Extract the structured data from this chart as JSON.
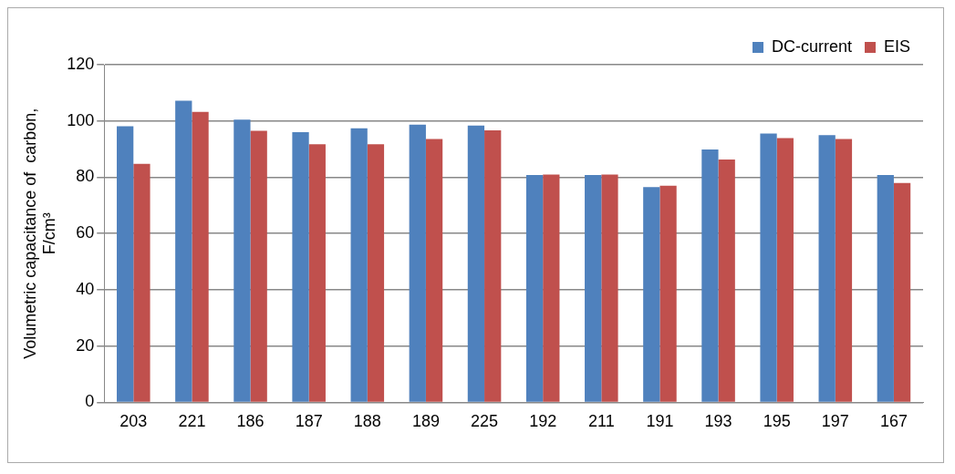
{
  "chart_data": {
    "type": "bar",
    "ylabel": "Volumetric capacitance of  carbon, F/cm³",
    "categories": [
      "203",
      "221",
      "186",
      "187",
      "188",
      "189",
      "225",
      "192",
      "211",
      "191",
      "193",
      "195",
      "197",
      "167"
    ],
    "series": [
      {
        "name": "DC-current",
        "color": "#4f81bd",
        "values": [
          98.1,
          107.2,
          100.5,
          96,
          97.4,
          98.7,
          98.4,
          80.8,
          80.8,
          76.5,
          89.9,
          95.5,
          95.0,
          80.8
        ]
      },
      {
        "name": "EIS",
        "color": "#c0504d",
        "values": [
          84.8,
          103.2,
          96.5,
          91.7,
          91.7,
          93.6,
          96.7,
          81.0,
          81.0,
          77.0,
          86.3,
          93.9,
          93.6,
          78.0
        ]
      }
    ],
    "ylim": [
      0,
      120
    ],
    "yticks": [
      0,
      20,
      40,
      60,
      80,
      100,
      120
    ],
    "grid": "y",
    "legend": "top right"
  }
}
